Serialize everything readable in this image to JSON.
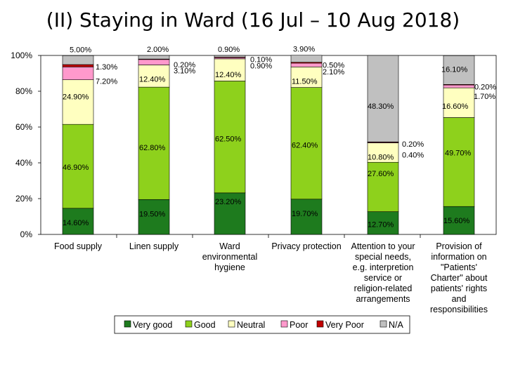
{
  "chart_data": {
    "type": "bar",
    "stacked": true,
    "percent": true,
    "title": "(II) Staying in Ward (16 Jul – 10 Aug 2018)",
    "categories": [
      "Food supply",
      "Linen supply",
      "Ward environmental hygiene",
      "Privacy protection",
      "Attention to your special needs, e.g. interpretion service or religion-related arrangements",
      "Provision of information on \"Patients' Charter\" about patients' rights and responsibilities"
    ],
    "category_lines": [
      [
        "Food supply"
      ],
      [
        "Linen supply"
      ],
      [
        "Ward",
        "environmental",
        "hygiene"
      ],
      [
        "Privacy protection"
      ],
      [
        "Attention to your",
        "special needs,",
        "e.g. interpretion",
        "service or",
        "religion-related",
        "arrangements"
      ],
      [
        "Provision of",
        "information on",
        "\"Patients'",
        "Charter\" about",
        "patients' rights",
        "and",
        "responsibilities"
      ]
    ],
    "series": [
      {
        "name": "Very good",
        "color": "#1e7b1e",
        "values": [
          14.6,
          19.5,
          23.2,
          19.7,
          12.7,
          15.6
        ]
      },
      {
        "name": "Good",
        "color": "#8ed11c",
        "values": [
          46.9,
          62.8,
          62.5,
          62.4,
          27.6,
          49.7
        ]
      },
      {
        "name": "Neutral",
        "color": "#ffffc0",
        "values": [
          24.9,
          12.4,
          12.4,
          11.5,
          10.8,
          16.6
        ]
      },
      {
        "name": "Poor",
        "color": "#ff99cc",
        "values": [
          7.2,
          3.1,
          0.9,
          2.1,
          0.4,
          1.7
        ]
      },
      {
        "name": "Very Poor",
        "color": "#c00000",
        "values": [
          1.3,
          0.2,
          0.1,
          0.5,
          0.2,
          0.2
        ]
      },
      {
        "name": "N/A",
        "color": "#c0c0c0",
        "values": [
          5.0,
          2.0,
          0.9,
          3.9,
          48.3,
          16.1
        ]
      }
    ],
    "value_labels": [
      [
        "14.60%",
        "46.90%",
        "24.90%",
        "7.20%",
        "1.30%",
        "5.00%"
      ],
      [
        "19.50%",
        "62.80%",
        "12.40%",
        "3.10%",
        "0.20%",
        "2.00%"
      ],
      [
        "23.20%",
        "62.50%",
        "12.40%",
        "0.90%",
        "0.10%",
        "0.90%"
      ],
      [
        "19.70%",
        "62.40%",
        "11.50%",
        "2.10%",
        "0.50%",
        "3.90%"
      ],
      [
        "12.70%",
        "27.60%",
        "10.80%",
        "0.40%",
        "0.20%",
        "48.30%"
      ],
      [
        "15.60%",
        "49.70%",
        "16.60%",
        "1.70%",
        "0.20%",
        "16.10%"
      ]
    ],
    "y_ticks": [
      "0%",
      "20%",
      "40%",
      "60%",
      "80%",
      "100%"
    ],
    "y_tick_values": [
      0,
      20,
      40,
      60,
      80,
      100
    ],
    "ylim": [
      0,
      100
    ],
    "xlabel": "",
    "ylabel": "",
    "grid": false,
    "legend_position": "bottom"
  }
}
